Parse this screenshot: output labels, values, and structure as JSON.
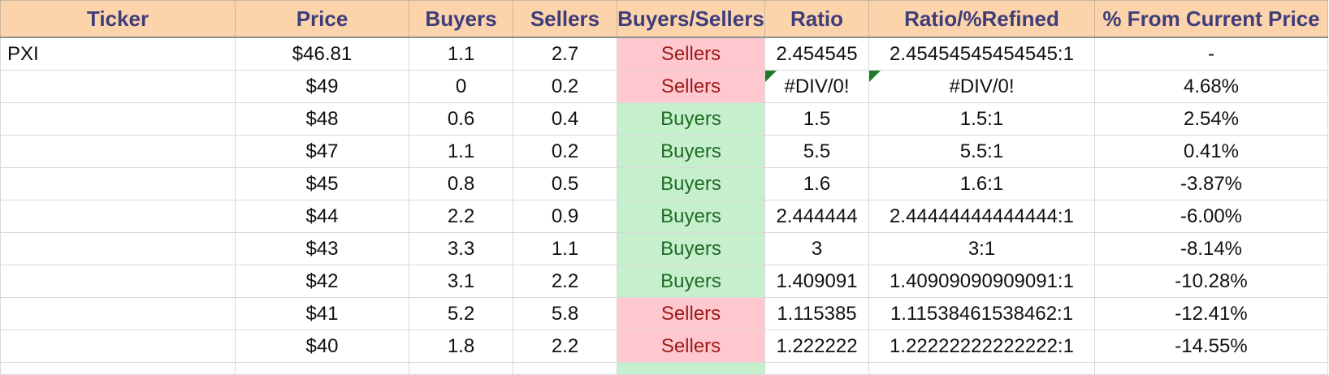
{
  "columns": [
    "Ticker",
    "Price",
    "Buyers",
    "Sellers",
    "Buyers/Sellers",
    "Ratio",
    "Ratio/%Refined",
    "% From Current Price"
  ],
  "rows": [
    {
      "ticker": "PXI",
      "price": "$46.81",
      "buyers": "1.1",
      "sellers": "2.7",
      "status": "Sellers",
      "ratio": "2.454545",
      "refined": "2.45454545454545:1",
      "pct": "-"
    },
    {
      "ticker": "",
      "price": "$49",
      "buyers": "0",
      "sellers": "0.2",
      "status": "Sellers",
      "ratio": "#DIV/0!",
      "refined": "#DIV/0!",
      "pct": "4.68%"
    },
    {
      "ticker": "",
      "price": "$48",
      "buyers": "0.6",
      "sellers": "0.4",
      "status": "Buyers",
      "ratio": "1.5",
      "refined": "1.5:1",
      "pct": "2.54%"
    },
    {
      "ticker": "",
      "price": "$47",
      "buyers": "1.1",
      "sellers": "0.2",
      "status": "Buyers",
      "ratio": "5.5",
      "refined": "5.5:1",
      "pct": "0.41%"
    },
    {
      "ticker": "",
      "price": "$45",
      "buyers": "0.8",
      "sellers": "0.5",
      "status": "Buyers",
      "ratio": "1.6",
      "refined": "1.6:1",
      "pct": "-3.87%"
    },
    {
      "ticker": "",
      "price": "$44",
      "buyers": "2.2",
      "sellers": "0.9",
      "status": "Buyers",
      "ratio": "2.444444",
      "refined": "2.44444444444444:1",
      "pct": "-6.00%"
    },
    {
      "ticker": "",
      "price": "$43",
      "buyers": "3.3",
      "sellers": "1.1",
      "status": "Buyers",
      "ratio": "3",
      "refined": "3:1",
      "pct": "-8.14%"
    },
    {
      "ticker": "",
      "price": "$42",
      "buyers": "3.1",
      "sellers": "2.2",
      "status": "Buyers",
      "ratio": "1.409091",
      "refined": "1.40909090909091:1",
      "pct": "-10.28%"
    },
    {
      "ticker": "",
      "price": "$41",
      "buyers": "5.2",
      "sellers": "5.8",
      "status": "Sellers",
      "ratio": "1.115385",
      "refined": "1.11538461538462:1",
      "pct": "-12.41%"
    },
    {
      "ticker": "",
      "price": "$40",
      "buyers": "1.8",
      "sellers": "2.2",
      "status": "Sellers",
      "ratio": "1.222222",
      "refined": "1.22222222222222:1",
      "pct": "-14.55%"
    }
  ],
  "colors": {
    "header_bg": "#fcd4ac",
    "header_text": "#3e3d7a",
    "buyers_bg": "#c6efce",
    "buyers_text": "#1f6b23",
    "sellers_bg": "#ffc7ce",
    "sellers_text": "#9c1a1a",
    "error_flag": "#1f7a2a"
  }
}
